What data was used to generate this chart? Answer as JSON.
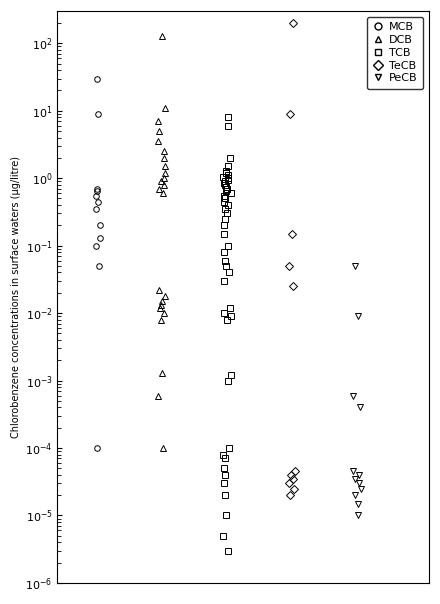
{
  "ylabel": "Chlorobenzene concentrations in surface waters (µg/litre)",
  "ylim_low": 1e-06,
  "ylim_high": 300.0,
  "MCB": [
    30,
    9,
    0.7,
    0.65,
    0.55,
    0.45,
    0.35,
    0.2,
    0.13,
    0.1,
    0.05,
    0.0001
  ],
  "DCB": [
    130,
    11,
    7,
    5,
    3.5,
    2.5,
    2.0,
    1.5,
    1.2,
    1.0,
    0.9,
    0.8,
    0.7,
    0.6,
    0.022,
    0.018,
    0.015,
    0.013,
    0.012,
    0.01,
    0.008,
    0.0013,
    0.0006,
    0.0001
  ],
  "TCB": [
    8,
    6,
    2.0,
    1.5,
    1.3,
    1.2,
    1.1,
    1.05,
    1.0,
    0.95,
    0.9,
    0.85,
    0.8,
    0.75,
    0.7,
    0.65,
    0.6,
    0.55,
    0.5,
    0.45,
    0.4,
    0.35,
    0.3,
    0.25,
    0.2,
    0.15,
    0.1,
    0.08,
    0.06,
    0.05,
    0.04,
    0.03,
    0.012,
    0.01,
    0.009,
    0.008,
    0.0012,
    0.001,
    0.0001,
    8e-05,
    7e-05,
    5e-05,
    4e-05,
    3e-05,
    2e-05,
    1e-05,
    5e-06,
    3e-06
  ],
  "TeCB": [
    200,
    9,
    0.15,
    0.05,
    0.025,
    4.5e-05,
    4e-05,
    3.5e-05,
    3e-05,
    2.5e-05,
    2e-05
  ],
  "PeCB": [
    0.05,
    0.009,
    0.0006,
    0.0004,
    4.5e-05,
    4e-05,
    3.5e-05,
    3e-05,
    2.5e-05,
    2e-05,
    1.5e-05,
    1e-05
  ],
  "x_centers": [
    1,
    2,
    3,
    4,
    5
  ],
  "legend_labels": [
    "MCB",
    "DCB",
    "TCB",
    "TeCB",
    "PeCB"
  ],
  "markersize": 4,
  "jitter_spread": 0.06,
  "fontsize_ylabel": 7,
  "fontsize_legend": 8
}
